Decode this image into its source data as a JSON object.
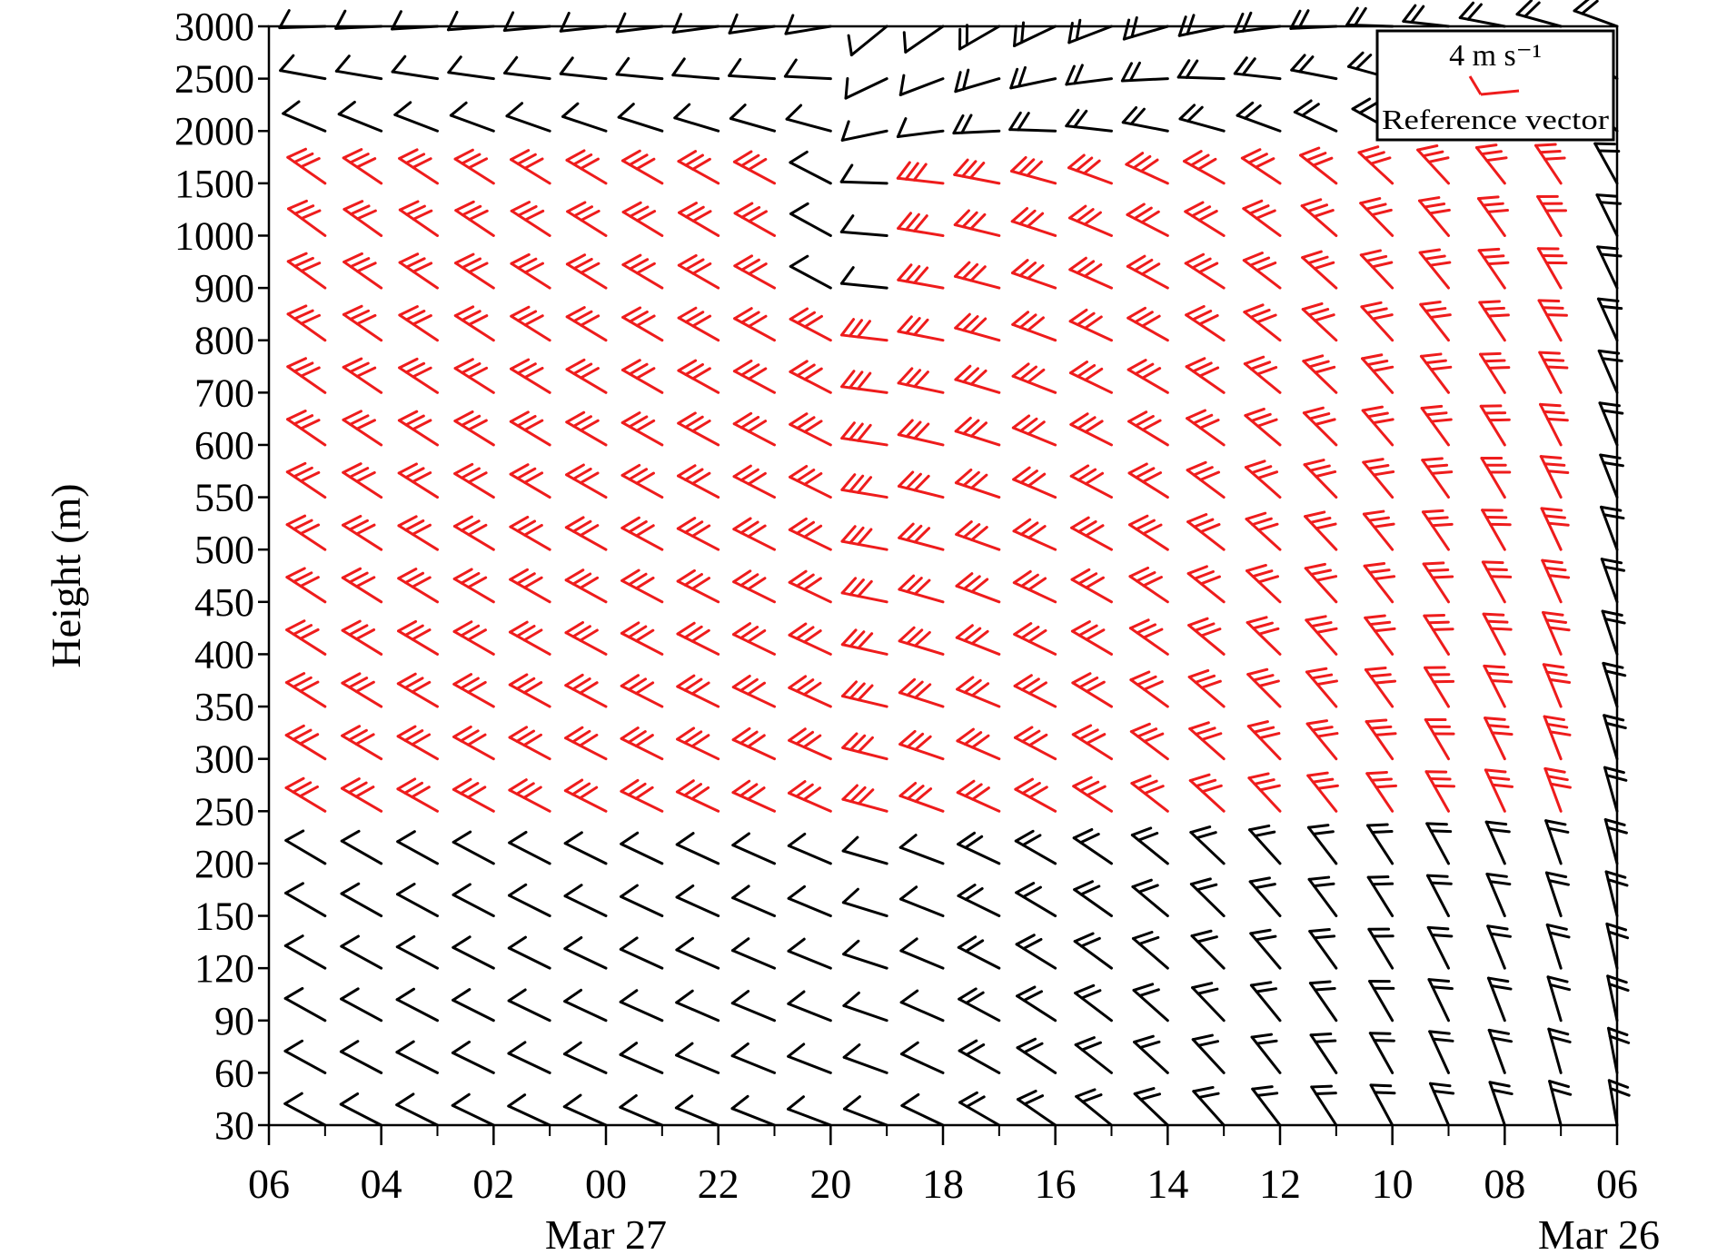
{
  "chart_data": {
    "type": "wind-barb",
    "title": "",
    "ylabel": "Height (m)",
    "xlabel": "",
    "x_ticks": [
      "06",
      "04",
      "02",
      "00",
      "22",
      "20",
      "18",
      "16",
      "14",
      "12",
      "10",
      "08",
      "06"
    ],
    "x_tick_hours": [
      30,
      28,
      26,
      24,
      22,
      20,
      18,
      16,
      14,
      12,
      10,
      8,
      6
    ],
    "x_axis_direction": "time decreases to the right",
    "x_range_hours": [
      30,
      6
    ],
    "date_labels": [
      {
        "label": "Mar 27",
        "hour": 24
      },
      {
        "label": "Mar 26",
        "hour": 6
      }
    ],
    "y_levels": [
      30,
      60,
      90,
      120,
      150,
      200,
      250,
      300,
      350,
      400,
      450,
      500,
      550,
      600,
      700,
      800,
      900,
      1000,
      1500,
      2000,
      2500,
      3000
    ],
    "y_scale": "categorical heights (non-uniform)",
    "grid": false,
    "legend": {
      "placement": "top-right",
      "speed_label": "4 m s⁻¹",
      "description": "Reference vector",
      "color": "#ee1c1c"
    },
    "barb_colors": {
      "low_level": "#000000",
      "highlighted": "#ee1c1c"
    },
    "wind_barbs": {
      "sample_hours": [
        29.0,
        28.0,
        27.0,
        26.0,
        25.0,
        24.0,
        23.0,
        22.0,
        21.0,
        20.0,
        19.0,
        18.0,
        17.0,
        16.0,
        15.0,
        14.0,
        13.0,
        12.0,
        11.0,
        10.0,
        9.0,
        8.0,
        7.0,
        6.0
      ],
      "description": "Wind barbs plotted hourly at every height level; directions veer from north-westerly/westerly on the left to north-easterly/northerly on the right; red barbs mark a low-level jet between roughly 250 m and 1500 m."
    },
    "series": [
      {
        "name": "Reference vector",
        "values": [
          4
        ]
      }
    ]
  }
}
